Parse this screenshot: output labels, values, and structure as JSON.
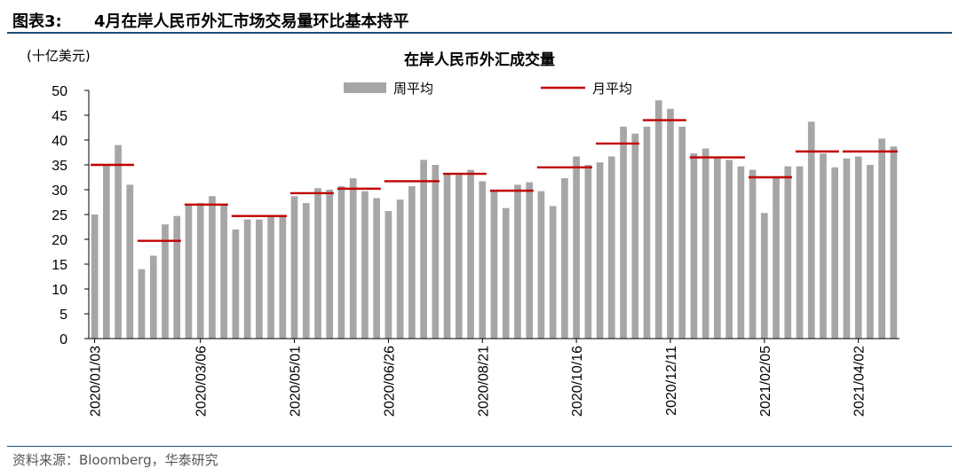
{
  "figure": {
    "label": "图表3:",
    "title": "4月在岸人民币外汇市场交易量环比基本持平",
    "source": "资料来源：Bloomberg，华泰研究"
  },
  "colors": {
    "bar": "#a6a6a6",
    "month_line": "#c00000",
    "rule": "#1f4e79"
  },
  "chart_data": {
    "type": "bar",
    "title": "在岸人民币外汇成交量",
    "ylabel": "(十亿美元)",
    "ylim": [
      0,
      50
    ],
    "yticks": [
      0,
      5,
      10,
      15,
      20,
      25,
      30,
      35,
      40,
      45,
      50
    ],
    "legend_placement": "top",
    "grid": false,
    "series": [
      {
        "name": "周平均",
        "style": "bar",
        "values": [
          25,
          35,
          39,
          31,
          14,
          16.7,
          23,
          24.7,
          27,
          27.3,
          28.7,
          27,
          22,
          24,
          24,
          24.7,
          24.7,
          28.7,
          27.3,
          30.3,
          30,
          30.7,
          32.3,
          29.7,
          28.3,
          25.7,
          28,
          30.7,
          36,
          35,
          33.3,
          33,
          34,
          31.7,
          29.7,
          26.3,
          31,
          31.5,
          29.7,
          26.7,
          32.3,
          36.7,
          35,
          35.5,
          36.7,
          42.7,
          41.3,
          42.7,
          48,
          46.3,
          42.7,
          37.3,
          38.3,
          36.7,
          36,
          34.7,
          34,
          25.3,
          32.7,
          34.7,
          34.7,
          43.7,
          37.3,
          34.5,
          36.3,
          36.7,
          35,
          40.3,
          38.7
        ]
      },
      {
        "name": "月平均",
        "style": "line",
        "months": [
          {
            "start": 0,
            "end": 4,
            "value": 35
          },
          {
            "start": 4,
            "end": 8,
            "value": 19.7
          },
          {
            "start": 8,
            "end": 12,
            "value": 27
          },
          {
            "start": 12,
            "end": 17,
            "value": 24.7
          },
          {
            "start": 17,
            "end": 21,
            "value": 29.3
          },
          {
            "start": 21,
            "end": 25,
            "value": 30.2
          },
          {
            "start": 25,
            "end": 30,
            "value": 31.7
          },
          {
            "start": 30,
            "end": 34,
            "value": 33.2
          },
          {
            "start": 34,
            "end": 38,
            "value": 29.8
          },
          {
            "start": 38,
            "end": 43,
            "value": 34.5
          },
          {
            "start": 43,
            "end": 47,
            "value": 39.3
          },
          {
            "start": 47,
            "end": 51,
            "value": 44
          },
          {
            "start": 51,
            "end": 56,
            "value": 36.5
          },
          {
            "start": 56,
            "end": 60,
            "value": 32.5
          },
          {
            "start": 60,
            "end": 64,
            "value": 37.7
          },
          {
            "start": 64,
            "end": 69,
            "value": 37.7
          }
        ]
      }
    ],
    "x_ticks": [
      {
        "index": 0,
        "label": "2020/01/03"
      },
      {
        "index": 9,
        "label": "2020/03/06"
      },
      {
        "index": 17,
        "label": "2020/05/01"
      },
      {
        "index": 25,
        "label": "2020/06/26"
      },
      {
        "index": 33,
        "label": "2020/08/21"
      },
      {
        "index": 41,
        "label": "2020/10/16"
      },
      {
        "index": 49,
        "label": "2020/12/11"
      },
      {
        "index": 57,
        "label": "2021/02/05"
      },
      {
        "index": 65,
        "label": "2021/04/02"
      }
    ]
  }
}
